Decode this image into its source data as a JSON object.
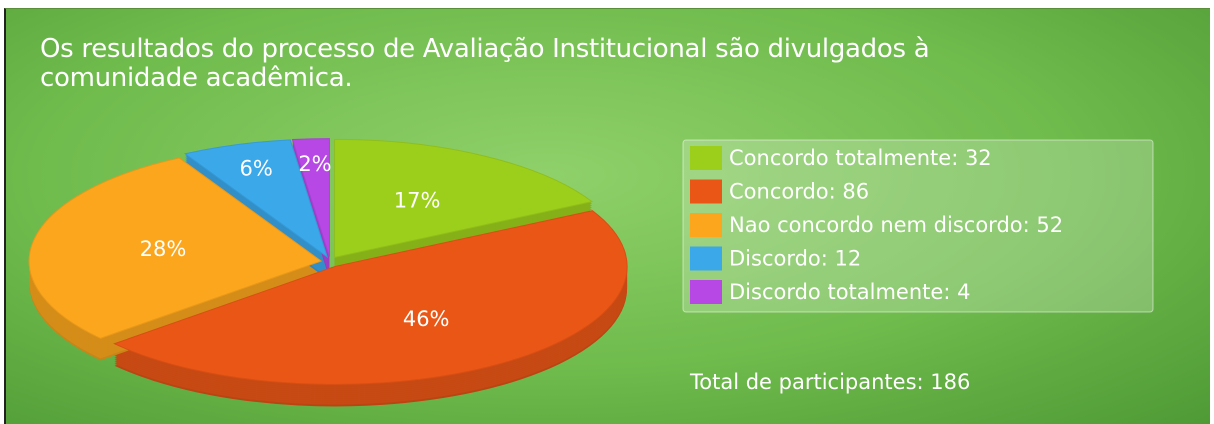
{
  "chart_data": {
    "type": "pie",
    "title": "Os resultados do processo de Avaliação Institucional são divulgados à comunidade acadêmica.",
    "categories": [
      "Concordo totalmente: 32",
      "Concordo: 86",
      "Nao concordo nem discordo: 52",
      "Discordo: 12",
      "Discordo totalmente: 4"
    ],
    "values": [
      17,
      46,
      28,
      6,
      2
    ],
    "value_labels": [
      "17%",
      "46%",
      "28%",
      "6%",
      "2%"
    ],
    "colors": [
      "#9ccf1c",
      "#ea5616",
      "#fba61d",
      "#3ba8ea",
      "#b748e6"
    ],
    "legend": "right",
    "annotation": "Total de participantes: 186"
  }
}
